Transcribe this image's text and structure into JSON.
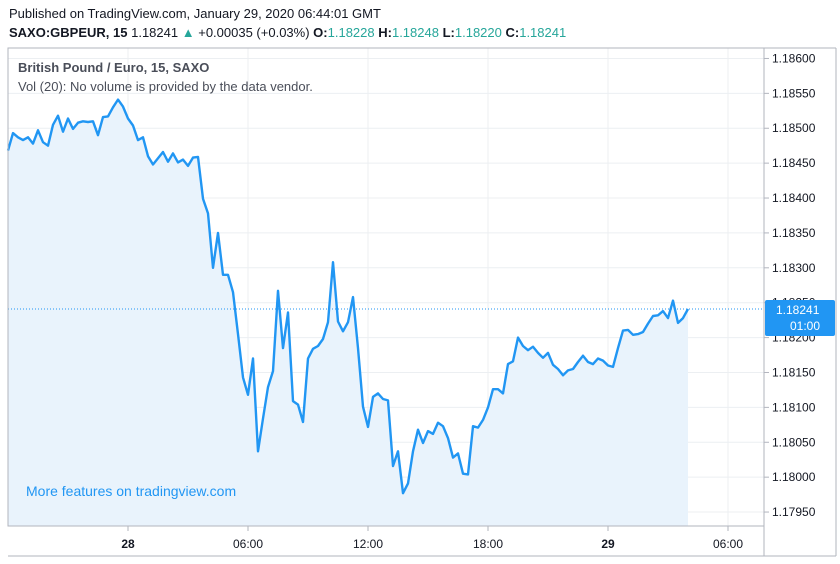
{
  "header": {
    "published": "Published on TradingView.com, January 29, 2020 06:44:01 GMT",
    "symbol": "SAXO:GBPEUR, 15",
    "last": "1.18241",
    "change_arrow": "▲",
    "change": "+0.00035 (+0.03%)",
    "o_label": "O:",
    "o_value": "1.18228",
    "h_label": "H:",
    "h_value": "1.18248",
    "l_label": "L:",
    "l_value": "1.18220",
    "c_label": "C:",
    "c_value": "1.18241"
  },
  "overlay": {
    "title": "British Pound / Euro, 15, SAXO",
    "volume_note": "Vol (20): No volume is provided by the data vendor."
  },
  "promo": {
    "text": "More features on tradingview.com"
  },
  "price_tag": {
    "price": "1.18241",
    "countdown": "01:00"
  },
  "colors": {
    "line": "#2196f3",
    "fill": "#e9f3fc",
    "up": "#26a69a",
    "grid": "#eceff2",
    "price_line": "#2196f3"
  },
  "chart_data": {
    "type": "area",
    "y_ticks": [
      "1.18600",
      "1.18550",
      "1.18500",
      "1.18450",
      "1.18400",
      "1.18350",
      "1.18300",
      "1.18250",
      "1.18200",
      "1.18150",
      "1.18100",
      "1.18050",
      "1.18000",
      "1.17950"
    ],
    "x_ticks": [
      {
        "label": "28",
        "t": 24,
        "bold": true
      },
      {
        "label": "06:00",
        "t": 48,
        "bold": false
      },
      {
        "label": "12:00",
        "t": 72,
        "bold": false
      },
      {
        "label": "18:00",
        "t": 96,
        "bold": false
      },
      {
        "label": "29",
        "t": 120,
        "bold": true
      },
      {
        "label": "06:00",
        "t": 144,
        "bold": false
      }
    ],
    "ylim": [
      1.1793,
      1.18615
    ],
    "xlim": [
      0,
      151.2
    ],
    "grid": true,
    "last_price": 1.18241,
    "series": [
      {
        "values": [
          1.18468,
          1.18493,
          1.18487,
          1.18483,
          1.18487,
          1.18478,
          1.18497,
          1.1848,
          1.18475,
          1.18505,
          1.18518,
          1.18495,
          1.18514,
          1.18499,
          1.18508,
          1.1851,
          1.18509,
          1.1851,
          1.1849,
          1.18516,
          1.18517,
          1.1853,
          1.18541,
          1.18531,
          1.18514,
          1.18504,
          1.18483,
          1.18487,
          1.1846,
          1.18448,
          1.18457,
          1.18466,
          1.18452,
          1.18464,
          1.18451,
          1.18455,
          1.18446,
          1.18458,
          1.18459,
          1.18399,
          1.18378,
          1.183,
          1.1835,
          1.1829,
          1.1829,
          1.18265,
          1.18205,
          1.18143,
          1.18118,
          1.1817,
          1.18037,
          1.18084,
          1.18129,
          1.18152,
          1.18267,
          1.18185,
          1.18236,
          1.18109,
          1.18104,
          1.18079,
          1.1817,
          1.18184,
          1.18188,
          1.18198,
          1.18222,
          1.18308,
          1.18223,
          1.18209,
          1.18222,
          1.18258,
          1.18185,
          1.18101,
          1.18072,
          1.18115,
          1.1812,
          1.18112,
          1.1811,
          1.18016,
          1.18037,
          1.17977,
          1.17991,
          1.18037,
          1.18068,
          1.18049,
          1.18066,
          1.18062,
          1.18078,
          1.18073,
          1.18056,
          1.18028,
          1.18034,
          1.18005,
          1.18004,
          1.18073,
          1.18071,
          1.18082,
          1.181,
          1.18126,
          1.18126,
          1.1812,
          1.18162,
          1.18166,
          1.182,
          1.18188,
          1.18182,
          1.18187,
          1.18178,
          1.18171,
          1.18178,
          1.18161,
          1.18155,
          1.18146,
          1.18153,
          1.18155,
          1.18165,
          1.18174,
          1.18165,
          1.18162,
          1.1817,
          1.18167,
          1.1816,
          1.18158,
          1.18185,
          1.1821,
          1.18211,
          1.18204,
          1.18205,
          1.18208,
          1.1822,
          1.18231,
          1.18232,
          1.18238,
          1.18228,
          1.18253,
          1.18221,
          1.18228,
          1.18241
        ]
      }
    ]
  }
}
